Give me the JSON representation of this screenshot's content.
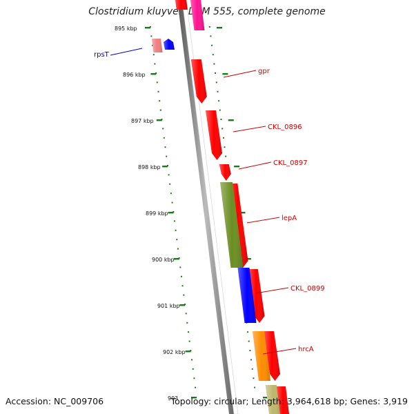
{
  "title": "Clostridium kluyveri DSM 555, complete genome",
  "accession": "Accession: NC_009706",
  "summary": "Topology: circular; Length: 3,964,618 bp; Genes: 3,919",
  "colors": {
    "backbone": "#888888",
    "tick": "#1a7a1a",
    "cds": "#ff0000",
    "label_forward": "#cc0000",
    "label_reverse": "#0000cc"
  },
  "scale_labels": [
    "895 kbp",
    "896 kbp",
    "897 kbp",
    "898 kbp",
    "899 kbp",
    "900 kbp",
    "901 kbp",
    "902 kbp",
    "903"
  ],
  "gene_labels": [
    {
      "name": "rpsT",
      "strand": "reverse"
    },
    {
      "name": "gpr",
      "strand": "forward"
    },
    {
      "name": "CKL_0896",
      "strand": "forward"
    },
    {
      "name": "CKL_0897",
      "strand": "forward"
    },
    {
      "name": "lepA",
      "strand": "forward"
    },
    {
      "name": "CKL_0899",
      "strand": "forward"
    },
    {
      "name": "hrcA",
      "strand": "forward"
    }
  ],
  "features": [
    {
      "track": "cds-forward",
      "color": "#ff0000"
    },
    {
      "track": "cds-forward",
      "color": "#ff0000"
    },
    {
      "track": "cds-forward",
      "color": "#ff0000"
    },
    {
      "track": "cds-forward",
      "color": "#ff0000"
    },
    {
      "track": "cds-forward",
      "color": "#ff0000"
    },
    {
      "track": "cds-forward",
      "color": "#ff0000"
    },
    {
      "track": "cds-forward",
      "color": "#ff0000"
    },
    {
      "track": "cds-forward",
      "color": "#ff0000"
    },
    {
      "track": "cog-forward",
      "color": "#ff1493"
    },
    {
      "track": "cog-forward",
      "color": "#6b8e23"
    },
    {
      "track": "cog-forward",
      "color": "#0000ff"
    },
    {
      "track": "cog-forward",
      "color": "#ff8c00"
    },
    {
      "track": "cog-forward",
      "color": "#bdb76b"
    },
    {
      "track": "cds-reverse",
      "color": "#f08080"
    },
    {
      "track": "cog-reverse",
      "color": "#0000ff"
    }
  ]
}
